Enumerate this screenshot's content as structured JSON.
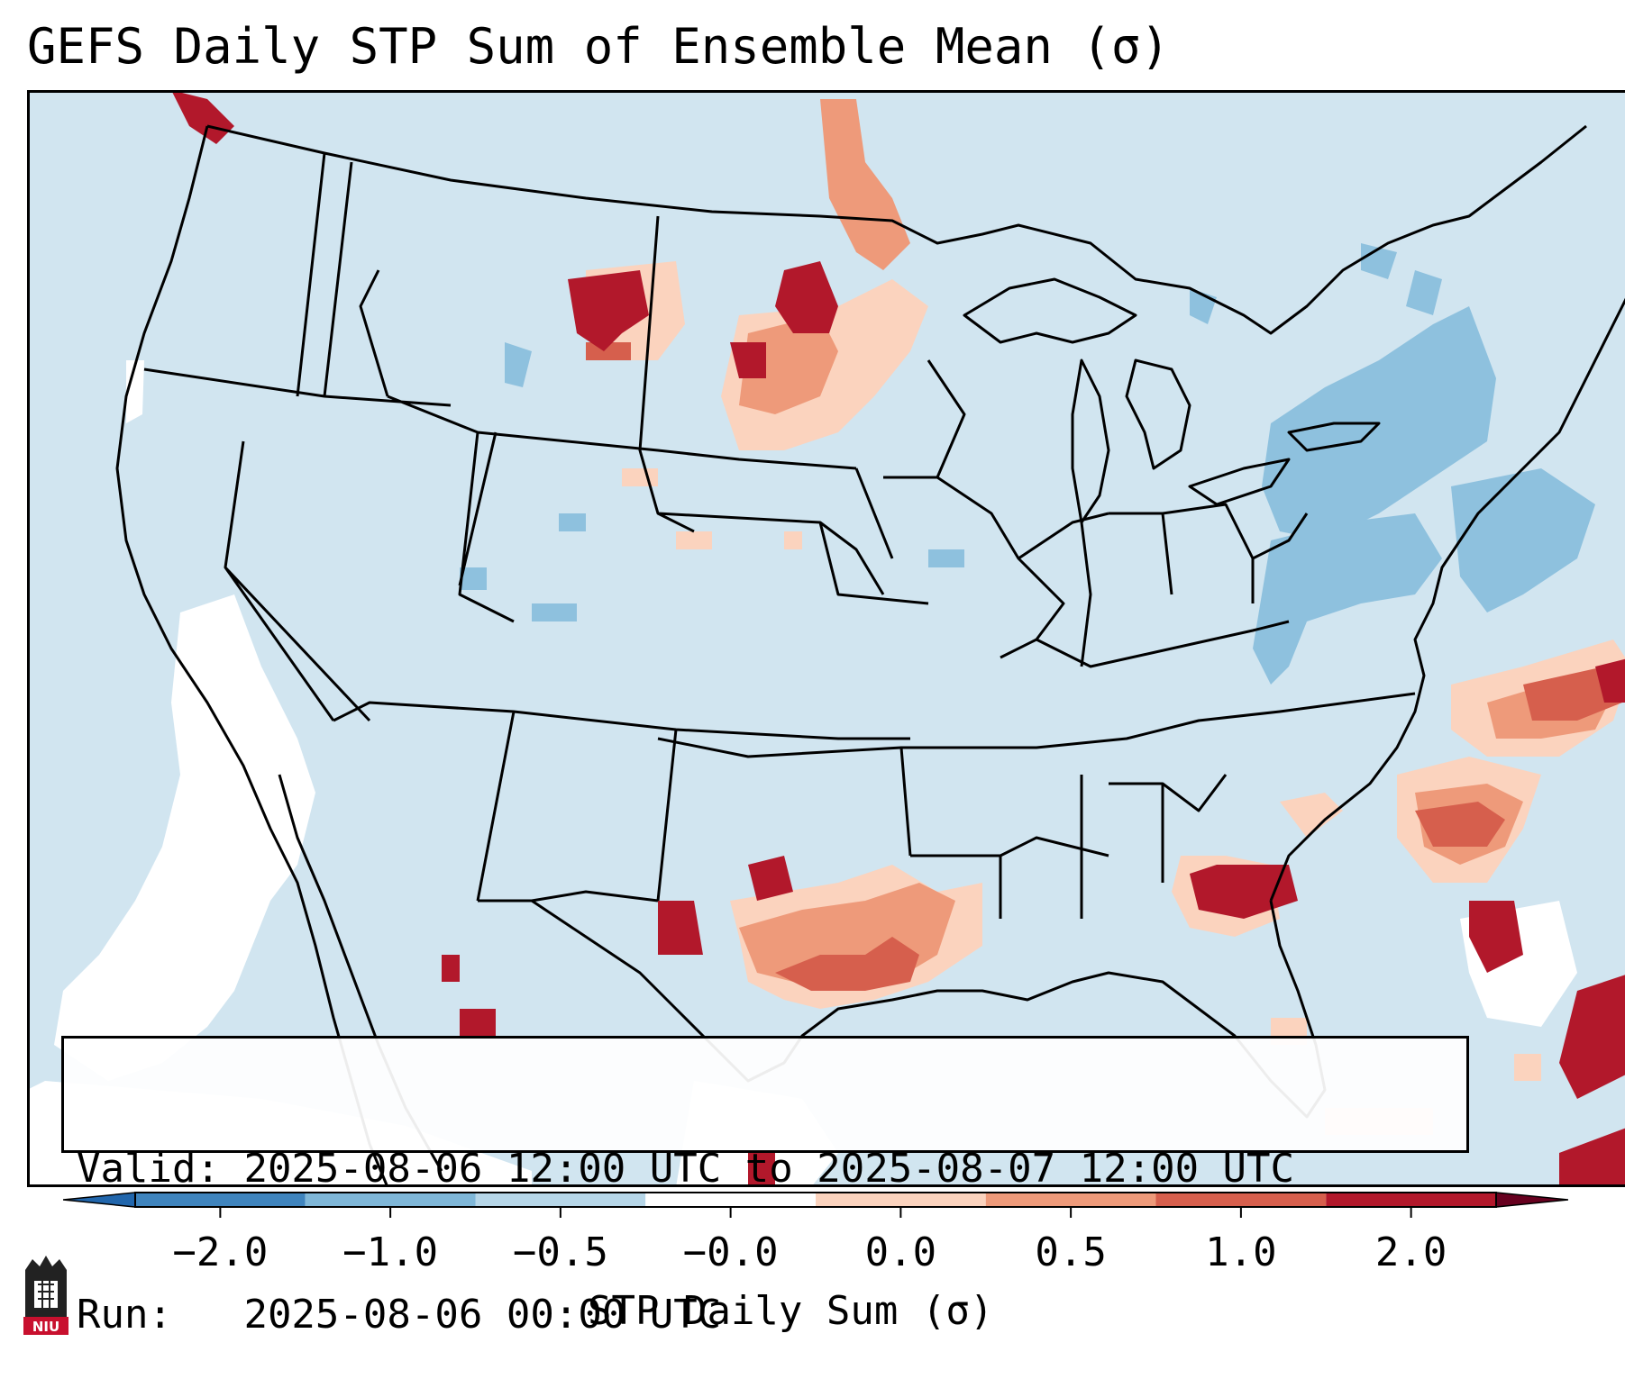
{
  "title": "GEFS Daily STP Sum of Ensemble Mean (σ)",
  "info": {
    "valid_label": "Valid:",
    "valid_value": "2025-08-06 12:00 UTC to 2025-08-07 12:00 UTC",
    "run_label": "Run:",
    "run_value": "2025-08-06 00:00 UTC"
  },
  "colorbar": {
    "label": "STP Daily Sum (σ)",
    "ticks": [
      "−2.0",
      "−1.0",
      "−0.5",
      "−0.0",
      "0.0",
      "0.5",
      "1.0",
      "2.0"
    ],
    "colors": [
      "#3f84bd",
      "#7fb7d8",
      "#b6d6e8",
      "#ffffff",
      "#fbd3be",
      "#ee9a7a",
      "#d65f4d",
      "#b2182b"
    ],
    "background_color": "#d1e5f0"
  },
  "map": {
    "region": "Contiguous United States",
    "field": "STP daily sum standardized anomaly"
  },
  "logo": {
    "text": "NIU"
  }
}
